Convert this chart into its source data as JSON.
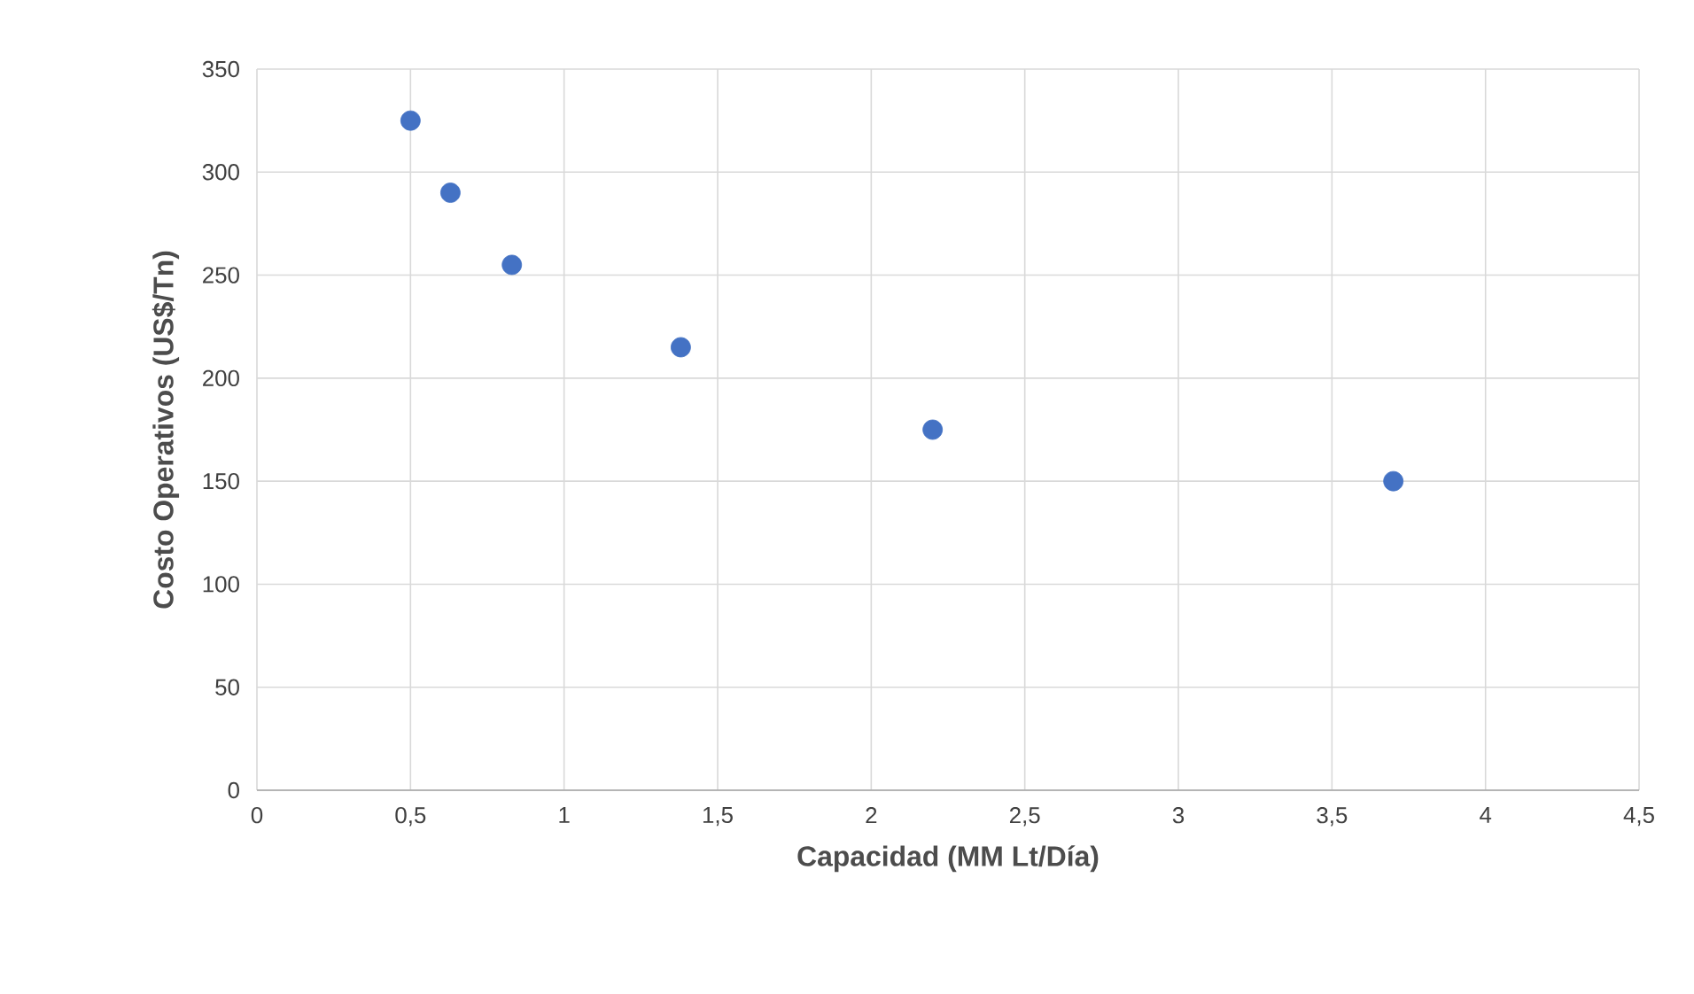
{
  "chart_data": {
    "type": "scatter",
    "xlabel": "Capacidad (MM Lt/Día)",
    "ylabel": "Costo Operativos (US$/Tn)",
    "x": [
      0.5,
      0.63,
      0.83,
      1.38,
      2.2,
      3.7
    ],
    "values": [
      325,
      290,
      255,
      215,
      175,
      150
    ],
    "color": "#4472c4",
    "grid": true,
    "xlim": [
      0,
      4.5
    ],
    "ylim": [
      0,
      350
    ],
    "xticks": [
      0,
      {
        "value": 0.5,
        "label": "0,5"
      },
      1,
      {
        "value": 1.5,
        "label": "1,5"
      },
      2,
      {
        "value": 2.5,
        "label": "2,5"
      },
      3,
      {
        "value": 3.5,
        "label": "3,5"
      },
      4,
      {
        "value": 4.5,
        "label": "4,5"
      }
    ],
    "yticks": [
      0,
      50,
      100,
      150,
      200,
      250,
      300,
      350
    ]
  }
}
